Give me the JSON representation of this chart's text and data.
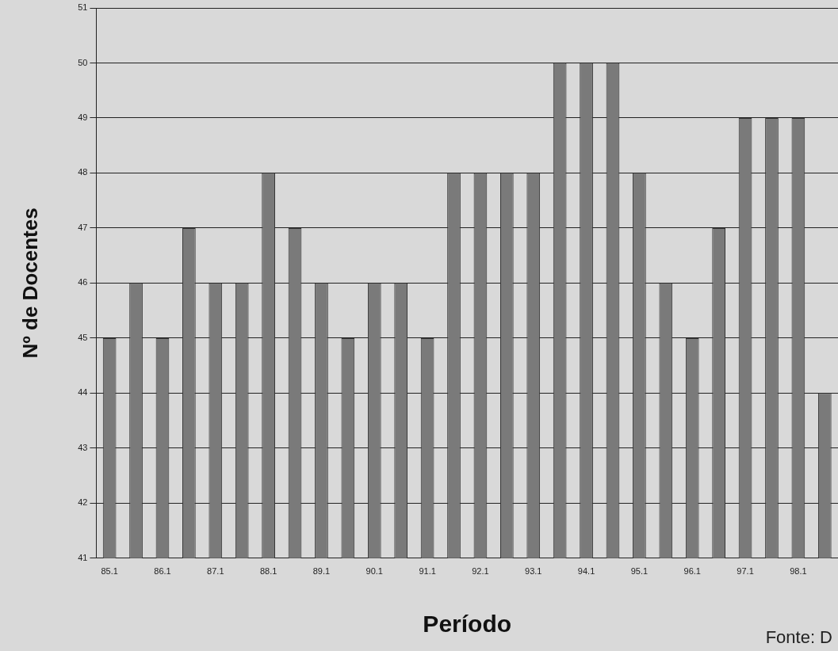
{
  "chart_data": {
    "type": "bar",
    "xlabel": "Período",
    "ylabel": "Nº de Docentes",
    "categories": [
      "85.1",
      null,
      "86.1",
      null,
      "87.1",
      null,
      "88.1",
      null,
      "89.1",
      null,
      "90.1",
      null,
      "91.1",
      null,
      "92.1",
      null,
      "93.1",
      null,
      "94.1",
      null,
      "95.1",
      null,
      "96.1",
      null,
      "97.1",
      null,
      "98.1",
      null
    ],
    "values": [
      45,
      46,
      45,
      47,
      46,
      46,
      48,
      47,
      46,
      45,
      46,
      46,
      45,
      48,
      48,
      48,
      48,
      50,
      50,
      50,
      48,
      46,
      45,
      47,
      49,
      49,
      49,
      44
    ],
    "color": "#7a7a7a",
    "ylim": [
      41,
      51
    ],
    "yticks": [
      41,
      42,
      43,
      44,
      45,
      46,
      47,
      48,
      49,
      50,
      51
    ],
    "grid": "y",
    "annotations": [
      "Fonte: D"
    ]
  }
}
